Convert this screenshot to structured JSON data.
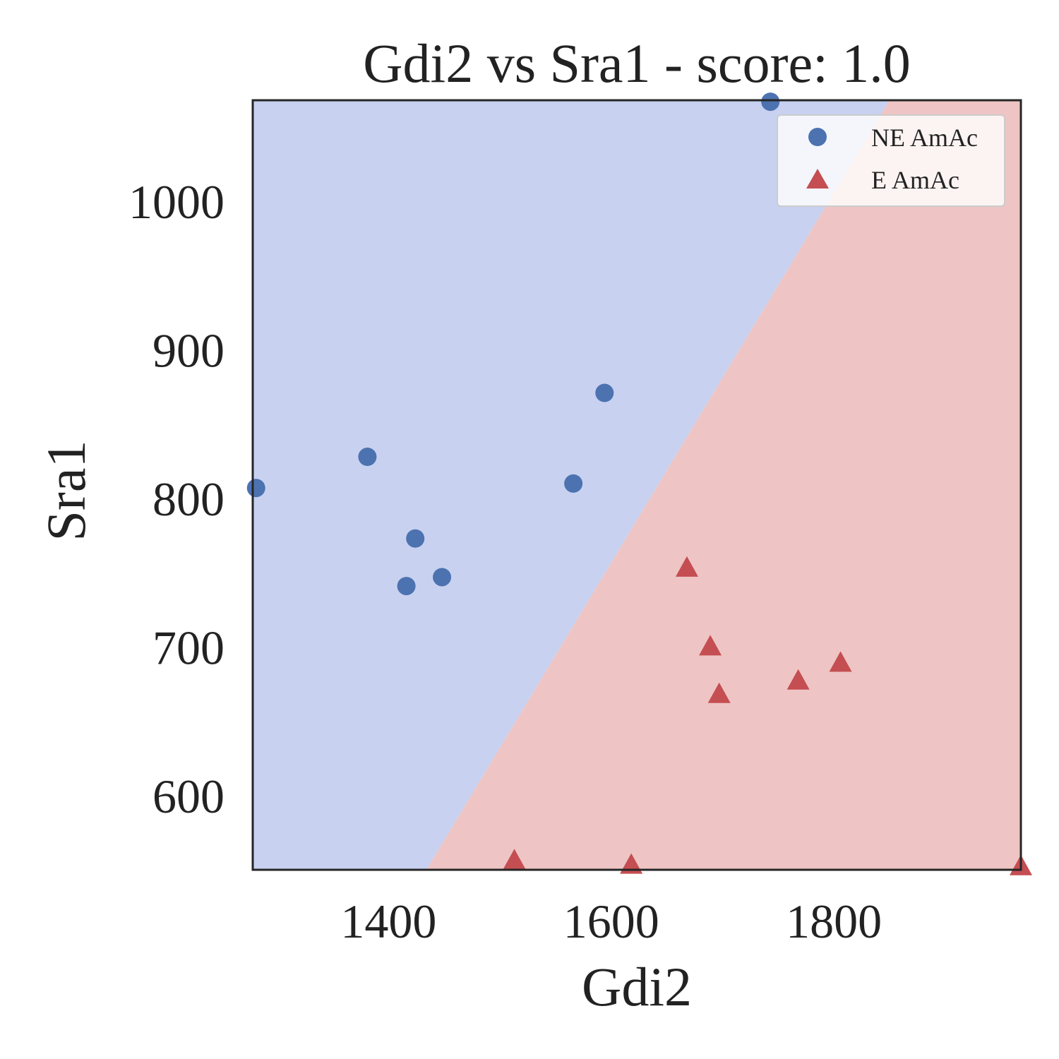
{
  "chart_data": {
    "type": "scatter",
    "title": "Gdi2 vs Sra1 - score: 1.0",
    "xlabel": "Gdi2",
    "ylabel": "Sra1",
    "xlim": [
      1278,
      1968
    ],
    "ylim": [
      550,
      1068
    ],
    "xticks": [
      1400,
      1600,
      1800
    ],
    "yticks": [
      600,
      700,
      800,
      900,
      1000
    ],
    "grid": false,
    "legend_position": "top-right",
    "decision_regions": {
      "boundary": [
        [
          1434,
          550
        ],
        [
          1850,
          1068
        ]
      ],
      "left_class_color": "#c8d1f0",
      "right_class_color": "#eec5c4"
    },
    "series": [
      {
        "name": "NE AmAc",
        "marker": "circle",
        "color": "#4c72b0",
        "points": [
          [
            1281,
            807
          ],
          [
            1381,
            828
          ],
          [
            1424,
            773
          ],
          [
            1416,
            741
          ],
          [
            1448,
            747
          ],
          [
            1566,
            810
          ],
          [
            1594,
            871
          ],
          [
            1743,
            1067
          ]
        ]
      },
      {
        "name": "E AmAc",
        "marker": "triangle",
        "color": "#c44e52",
        "points": [
          [
            1513,
            556
          ],
          [
            1618,
            553
          ],
          [
            1668,
            753
          ],
          [
            1689,
            700
          ],
          [
            1697,
            668
          ],
          [
            1768,
            677
          ],
          [
            1806,
            689
          ],
          [
            1968,
            552
          ]
        ]
      }
    ]
  }
}
